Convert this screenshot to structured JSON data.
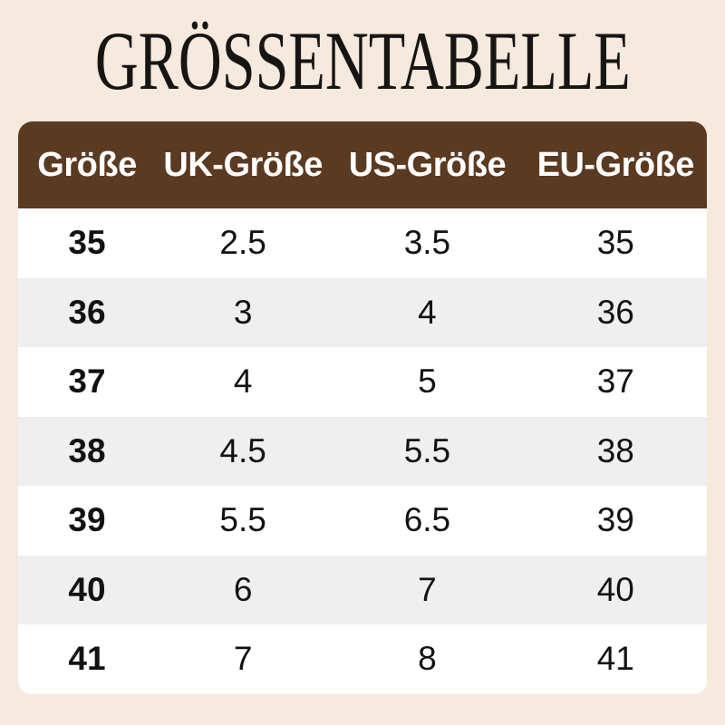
{
  "page": {
    "background_color": "#f6e9dd",
    "title": "GRÖSSENTABELLE",
    "title_color": "#161514"
  },
  "table": {
    "header_bg_color": "#5b3a22",
    "header_text_color": "#ffffff",
    "row_bg_color": "#ffffff",
    "row_alt_bg_color": "#efefef",
    "columns": [
      "Größe",
      "UK-Größe",
      "US-Größe",
      "EU-Größe"
    ],
    "rows": [
      [
        "35",
        "2.5",
        "3.5",
        "35"
      ],
      [
        "36",
        "3",
        "4",
        "36"
      ],
      [
        "37",
        "4",
        "5",
        "37"
      ],
      [
        "38",
        "4.5",
        "5.5",
        "38"
      ],
      [
        "39",
        "5.5",
        "6.5",
        "39"
      ],
      [
        "40",
        "6",
        "7",
        "40"
      ],
      [
        "41",
        "7",
        "8",
        "41"
      ]
    ]
  },
  "chart_data": {
    "type": "table",
    "title": "GRÖSSENTABELLE",
    "columns": [
      "Größe",
      "UK-Größe",
      "US-Größe",
      "EU-Größe"
    ],
    "rows": [
      [
        "35",
        "2.5",
        "3.5",
        "35"
      ],
      [
        "36",
        "3",
        "4",
        "36"
      ],
      [
        "37",
        "4",
        "5",
        "37"
      ],
      [
        "38",
        "4.5",
        "5.5",
        "38"
      ],
      [
        "39",
        "5.5",
        "6.5",
        "39"
      ],
      [
        "40",
        "6",
        "7",
        "40"
      ],
      [
        "41",
        "7",
        "8",
        "41"
      ]
    ]
  }
}
